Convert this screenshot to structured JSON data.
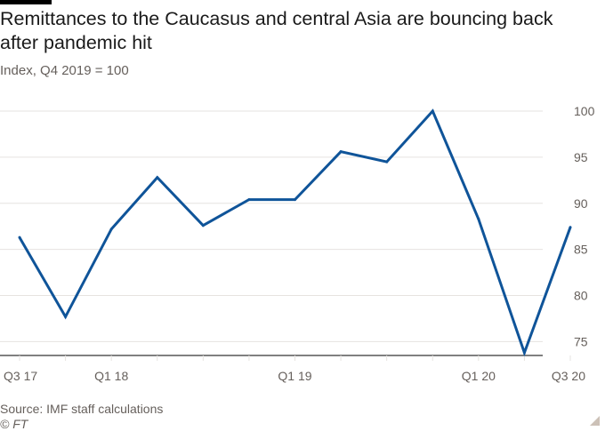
{
  "title": "Remittances to the Caucasus and central Asia are bouncing back after pandemic hit",
  "subtitle": "Index, Q4 2019 = 100",
  "footer": {
    "source": "Source: IMF staff calculations",
    "copyright": "© FT"
  },
  "colors": {
    "line": "#0f5499",
    "grid": "#e6e3e0",
    "axis": "#000000",
    "text": "#66605c"
  },
  "chart_data": {
    "type": "line",
    "title": "Remittances to the Caucasus and central Asia are bouncing back after pandemic hit",
    "ylabel": "Index, Q4 2019 = 100",
    "xlabel": "",
    "ylim": [
      73.5,
      100
    ],
    "yticks": [
      75,
      80,
      85,
      90,
      95,
      100
    ],
    "grid": true,
    "categories": [
      "Q3 17",
      "Q4 17",
      "Q1 18",
      "Q2 18",
      "Q3 18",
      "Q4 18",
      "Q1 19",
      "Q2 19",
      "Q3 19",
      "Q4 19",
      "Q1 20",
      "Q2 20",
      "Q3 20"
    ],
    "x_tick_labels": [
      {
        "index": 0,
        "label": "Q3 17"
      },
      {
        "index": 2,
        "label": "Q1 18"
      },
      {
        "index": 6,
        "label": "Q1 19"
      },
      {
        "index": 10,
        "label": "Q1 20"
      },
      {
        "index": 12,
        "label": "Q3 20"
      }
    ],
    "series": [
      {
        "values": [
          86.3,
          77.7,
          87.2,
          92.8,
          87.6,
          90.4,
          90.4,
          95.6,
          94.5,
          100,
          88.3,
          73.8,
          87.4
        ]
      }
    ]
  }
}
